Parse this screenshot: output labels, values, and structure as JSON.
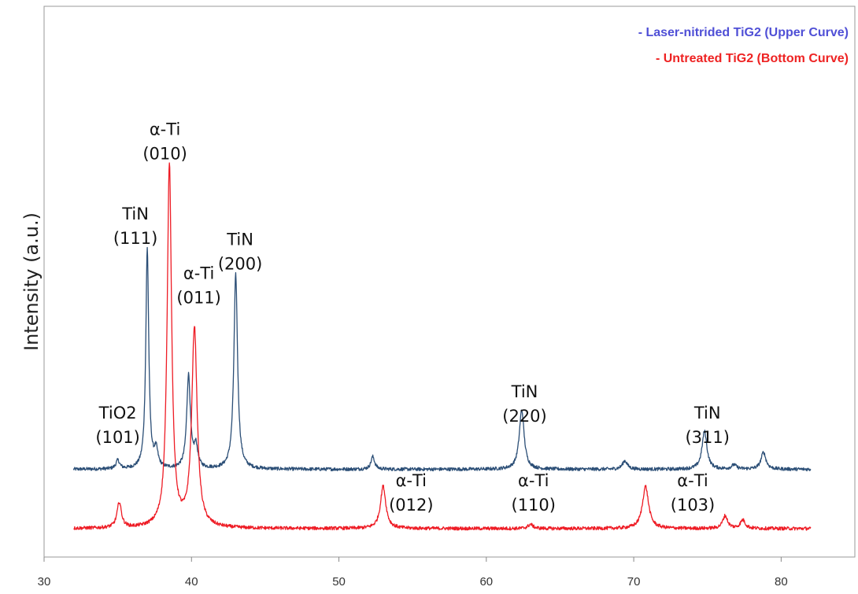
{
  "chart_data": {
    "type": "line",
    "title": "",
    "xlabel": "",
    "ylabel": "Intensity (a.u.)",
    "xlim": [
      30,
      85
    ],
    "x_ticks": [
      30,
      40,
      50,
      60,
      70,
      80
    ],
    "y_ticks_shown": false,
    "grid": false,
    "legend_placement": "top-right",
    "legend": [
      {
        "text": "- Laser-nitrided TiG2 (Upper Curve)",
        "color": "#4f4fd6"
      },
      {
        "text": "- Untreated TiG2 (Bottom Curve)",
        "color": "#ee2222"
      }
    ],
    "series": [
      {
        "color": "#2b4e76",
        "x_range": [
          32,
          82
        ],
        "baseline": 0.17,
        "noise": 0.004,
        "peaks": [
          {
            "x": 35.0,
            "h": 0.02,
            "w": 0.15
          },
          {
            "x": 37.0,
            "h": 0.52,
            "w": 0.12
          },
          {
            "x": 37.6,
            "h": 0.04,
            "w": 0.15
          },
          {
            "x": 39.8,
            "h": 0.22,
            "w": 0.15
          },
          {
            "x": 40.3,
            "h": 0.05,
            "w": 0.15
          },
          {
            "x": 43.0,
            "h": 0.46,
            "w": 0.15
          },
          {
            "x": 52.3,
            "h": 0.03,
            "w": 0.15
          },
          {
            "x": 62.4,
            "h": 0.14,
            "w": 0.2
          },
          {
            "x": 69.4,
            "h": 0.02,
            "w": 0.2
          },
          {
            "x": 74.8,
            "h": 0.09,
            "w": 0.2
          },
          {
            "x": 76.8,
            "h": 0.01,
            "w": 0.2
          },
          {
            "x": 78.8,
            "h": 0.04,
            "w": 0.2
          }
        ]
      },
      {
        "color": "#ee1c25",
        "x_range": [
          32,
          82
        ],
        "baseline": 0.03,
        "noise": 0.004,
        "peaks": [
          {
            "x": 35.1,
            "h": 0.06,
            "w": 0.18
          },
          {
            "x": 38.5,
            "h": 0.86,
            "w": 0.18
          },
          {
            "x": 40.2,
            "h": 0.47,
            "w": 0.22
          },
          {
            "x": 53.0,
            "h": 0.1,
            "w": 0.22
          },
          {
            "x": 63.0,
            "h": 0.01,
            "w": 0.2
          },
          {
            "x": 70.8,
            "h": 0.1,
            "w": 0.25
          },
          {
            "x": 76.2,
            "h": 0.03,
            "w": 0.2
          },
          {
            "x": 77.4,
            "h": 0.02,
            "w": 0.2
          }
        ]
      }
    ],
    "annotations": [
      {
        "line1": "TiO2",
        "line2": "(101)",
        "x": 35.0,
        "y": 0.29
      },
      {
        "line1": "TiN",
        "line2": "(111)",
        "x": 36.2,
        "y": 0.76
      },
      {
        "line1": "α-Ti",
        "line2": "(010)",
        "x": 38.2,
        "y": 0.96
      },
      {
        "line1": "TiN",
        "line2": "(200)",
        "x": 43.3,
        "y": 0.7
      },
      {
        "line1": "α-Ti",
        "line2": "(011)",
        "x": 40.5,
        "y": 0.62
      },
      {
        "line1": "TiN",
        "line2": "(220)",
        "x": 62.6,
        "y": 0.34
      },
      {
        "line1": "TiN",
        "line2": "(311)",
        "x": 75.0,
        "y": 0.29
      },
      {
        "line1": "α-Ti",
        "line2": "(012)",
        "x": 54.9,
        "y": 0.13
      },
      {
        "line1": "α-Ti",
        "line2": "(110)",
        "x": 63.2,
        "y": 0.13
      },
      {
        "line1": "α-Ti",
        "line2": "(103)",
        "x": 74.0,
        "y": 0.13
      }
    ]
  }
}
